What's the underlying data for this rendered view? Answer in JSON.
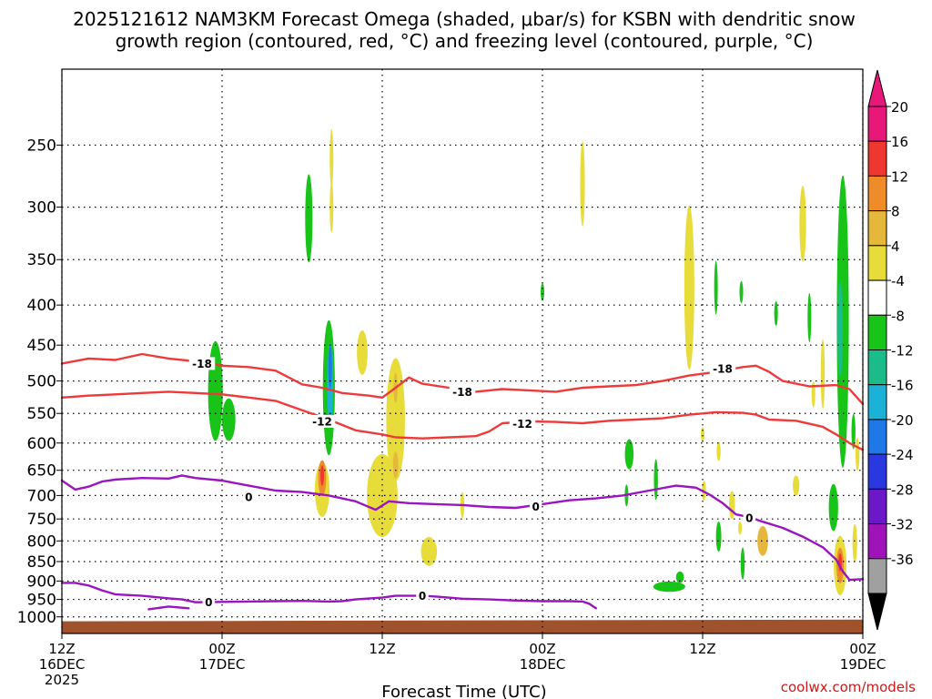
{
  "chart_data": {
    "type": "heatmap",
    "title_line1": "2025121612 NAM3KM Forecast Omega (shaded, μbar/s) for KSBN with dendritic snow",
    "title_line2": "growth region (contoured, red, °C) and freezing level (contoured, purple, °C)",
    "xlabel": "Forecast Time (UTC)",
    "credit": "coolwx.com/models",
    "x_range_hours": [
      0,
      60
    ],
    "p_range_hPa": [
      1050,
      200
    ],
    "y_ticks": [
      {
        "label": "250",
        "p": 250
      },
      {
        "label": "300",
        "p": 300
      },
      {
        "label": "350",
        "p": 350
      },
      {
        "label": "400",
        "p": 400
      },
      {
        "label": "450",
        "p": 450
      },
      {
        "label": "500",
        "p": 500
      },
      {
        "label": "550",
        "p": 550
      },
      {
        "label": "600",
        "p": 600
      },
      {
        "label": "650",
        "p": 650
      },
      {
        "label": "700",
        "p": 700
      },
      {
        "label": "750",
        "p": 750
      },
      {
        "label": "800",
        "p": 800
      },
      {
        "label": "850",
        "p": 850
      },
      {
        "label": "900",
        "p": 900
      },
      {
        "label": "950",
        "p": 950
      },
      {
        "label": "1000",
        "p": 1000
      }
    ],
    "x_ticks": [
      {
        "h": 0,
        "l1": "12Z",
        "l2": "16DEC",
        "l3": "2025"
      },
      {
        "h": 12,
        "l1": "00Z",
        "l2": "17DEC",
        "l3": ""
      },
      {
        "h": 24,
        "l1": "12Z",
        "l2": "",
        "l3": ""
      },
      {
        "h": 36,
        "l1": "00Z",
        "l2": "18DEC",
        "l3": ""
      },
      {
        "h": 48,
        "l1": "12Z",
        "l2": "",
        "l3": ""
      },
      {
        "h": 60,
        "l1": "00Z",
        "l2": "19DEC",
        "l3": ""
      }
    ],
    "colorbar": [
      {
        "label": "20",
        "color": "#e8177a"
      },
      {
        "label": "16",
        "color": "#f0372f"
      },
      {
        "label": "12",
        "color": "#ee8c2a"
      },
      {
        "label": "8",
        "color": "#e5b73a"
      },
      {
        "label": "4",
        "color": "#e8dc3a"
      },
      {
        "label": "-4",
        "color": "#ffffff"
      },
      {
        "label": "-8",
        "color": "#19c419"
      },
      {
        "label": "-12",
        "color": "#1bbc8a"
      },
      {
        "label": "-16",
        "color": "#1cb2d8"
      },
      {
        "label": "-20",
        "color": "#1e78e8"
      },
      {
        "label": "-24",
        "color": "#2a38e0"
      },
      {
        "label": "-28",
        "color": "#6a18c8"
      },
      {
        "label": "-32",
        "color": "#9e14b8"
      },
      {
        "label": "-36",
        "color": "#a0a0a0"
      }
    ],
    "colorbar_top_color": "#e8177a",
    "colorbar_bottom_color": "#000000",
    "terrain": {
      "p_top_left": 1013,
      "p_top_right": 1008,
      "color": "#a0522d"
    },
    "contours": [
      {
        "name": "dgz-top-minus18",
        "label": "-18",
        "color": "#ee3a3a",
        "label_points": [
          {
            "h": 10.5,
            "p": 475
          },
          {
            "h": 30,
            "p": 516
          },
          {
            "h": 49.5,
            "p": 482
          }
        ],
        "points": [
          [
            0,
            475
          ],
          [
            2,
            468
          ],
          [
            4,
            470
          ],
          [
            6,
            462
          ],
          [
            8,
            468
          ],
          [
            10,
            472
          ],
          [
            12,
            478
          ],
          [
            14,
            480
          ],
          [
            16,
            485
          ],
          [
            18,
            505
          ],
          [
            19.5,
            510
          ],
          [
            21,
            518
          ],
          [
            23,
            522
          ],
          [
            24,
            525
          ],
          [
            25,
            510
          ],
          [
            26,
            495
          ],
          [
            27,
            504
          ],
          [
            29,
            510
          ],
          [
            31,
            516
          ],
          [
            33,
            512
          ],
          [
            35,
            514
          ],
          [
            37,
            516
          ],
          [
            39,
            510
          ],
          [
            41,
            508
          ],
          [
            43,
            506
          ],
          [
            45,
            500
          ],
          [
            47,
            492
          ],
          [
            49,
            487
          ],
          [
            51,
            480
          ],
          [
            52,
            478
          ],
          [
            53,
            487
          ],
          [
            54,
            500
          ],
          [
            56,
            508
          ],
          [
            58,
            506
          ],
          [
            59,
            512
          ],
          [
            60,
            535
          ]
        ]
      },
      {
        "name": "dgz-bottom-minus12",
        "label": "-12",
        "color": "#ee3a3a",
        "label_points": [
          {
            "h": 19.5,
            "p": 563
          },
          {
            "h": 34.5,
            "p": 567
          }
        ],
        "points": [
          [
            0,
            525
          ],
          [
            2,
            522
          ],
          [
            4,
            520
          ],
          [
            6,
            518
          ],
          [
            8,
            516
          ],
          [
            10,
            518
          ],
          [
            12,
            520
          ],
          [
            14,
            525
          ],
          [
            16,
            530
          ],
          [
            18,
            545
          ],
          [
            20,
            560
          ],
          [
            22,
            578
          ],
          [
            24,
            585
          ],
          [
            25,
            590
          ],
          [
            27,
            592
          ],
          [
            29,
            590
          ],
          [
            31,
            588
          ],
          [
            32,
            580
          ],
          [
            33,
            566
          ],
          [
            35,
            563
          ],
          [
            37,
            564
          ],
          [
            39,
            566
          ],
          [
            41,
            562
          ],
          [
            43,
            560
          ],
          [
            45,
            558
          ],
          [
            47,
            552
          ],
          [
            49,
            548
          ],
          [
            51,
            549
          ],
          [
            52,
            552
          ],
          [
            53,
            560
          ],
          [
            55,
            562
          ],
          [
            57,
            572
          ],
          [
            58,
            585
          ],
          [
            59,
            600
          ],
          [
            60,
            612
          ]
        ]
      },
      {
        "name": "freezing-level-upper",
        "label": "0",
        "color": "#9a14c0",
        "label_points": [
          {
            "h": 14,
            "p": 703
          },
          {
            "h": 35.5,
            "p": 723
          },
          {
            "h": 51.5,
            "p": 748
          }
        ],
        "points": [
          [
            0,
            670
          ],
          [
            1,
            688
          ],
          [
            2,
            682
          ],
          [
            3,
            672
          ],
          [
            4,
            668
          ],
          [
            6,
            665
          ],
          [
            8,
            666
          ],
          [
            9,
            660
          ],
          [
            10,
            665
          ],
          [
            12,
            670
          ],
          [
            14,
            680
          ],
          [
            16,
            690
          ],
          [
            18,
            693
          ],
          [
            20,
            700
          ],
          [
            22,
            712
          ],
          [
            23.5,
            730
          ],
          [
            24.5,
            712
          ],
          [
            26,
            716
          ],
          [
            28,
            718
          ],
          [
            30,
            720
          ],
          [
            32,
            724
          ],
          [
            34,
            726
          ],
          [
            36,
            718
          ],
          [
            38,
            710
          ],
          [
            40,
            706
          ],
          [
            42,
            700
          ],
          [
            44,
            690
          ],
          [
            46,
            680
          ],
          [
            47.5,
            684
          ],
          [
            48.5,
            698
          ],
          [
            49.5,
            716
          ],
          [
            50.5,
            740
          ],
          [
            51.5,
            746
          ],
          [
            52.5,
            756
          ],
          [
            54,
            770
          ],
          [
            55.5,
            790
          ],
          [
            57,
            815
          ],
          [
            58,
            845
          ],
          [
            58.5,
            875
          ],
          [
            59,
            897
          ],
          [
            60,
            895
          ]
        ]
      },
      {
        "name": "freezing-level-lower",
        "label": "0",
        "color": "#9a14c0",
        "label_points": [
          {
            "h": 11,
            "p": 957
          },
          {
            "h": 27,
            "p": 940
          }
        ],
        "points": [
          [
            0,
            905
          ],
          [
            1,
            905
          ],
          [
            2,
            912
          ],
          [
            3,
            925
          ],
          [
            4,
            936
          ],
          [
            6,
            940
          ],
          [
            8,
            947
          ],
          [
            9,
            950
          ],
          [
            10,
            958
          ],
          [
            12,
            957
          ],
          [
            14,
            956
          ],
          [
            16,
            955
          ],
          [
            18,
            954
          ],
          [
            20,
            956
          ],
          [
            21,
            955
          ],
          [
            22,
            950
          ],
          [
            24,
            945
          ],
          [
            25,
            940
          ],
          [
            27,
            940
          ],
          [
            28,
            942
          ],
          [
            30,
            948
          ],
          [
            32,
            950
          ],
          [
            34,
            953
          ],
          [
            36,
            955
          ],
          [
            38,
            955
          ],
          [
            39,
            956
          ],
          [
            39.5,
            962
          ],
          [
            40,
            975
          ]
        ]
      },
      {
        "name": "freezing-level-fragment",
        "label": "",
        "color": "#9a14c0",
        "label_points": [],
        "points": [
          [
            6.5,
            978
          ],
          [
            8,
            970
          ],
          [
            9.5,
            975
          ]
        ]
      }
    ],
    "blobs": [
      {
        "h": 11.5,
        "p": 515,
        "w": 1.1,
        "hp": 150,
        "color": "#19c419"
      },
      {
        "h": 12.5,
        "p": 560,
        "w": 1.0,
        "hp": 70,
        "color": "#19c419"
      },
      {
        "h": 18.5,
        "p": 310,
        "w": 0.55,
        "hp": 80,
        "color": "#19c419"
      },
      {
        "h": 20.0,
        "p": 510,
        "w": 0.9,
        "hp": 200,
        "color": "#19c419"
      },
      {
        "h": 20.1,
        "p": 505,
        "w": 0.45,
        "hp": 120,
        "color": "#1cb2d8"
      },
      {
        "h": 20.1,
        "p": 480,
        "w": 0.25,
        "hp": 60,
        "color": "#1e78e8"
      },
      {
        "h": 20.2,
        "p": 260,
        "w": 0.25,
        "hp": 45,
        "color": "#e8dc3a"
      },
      {
        "h": 20.2,
        "p": 300,
        "w": 0.25,
        "hp": 45,
        "color": "#e8dc3a"
      },
      {
        "h": 22.5,
        "p": 460,
        "w": 0.8,
        "hp": 60,
        "color": "#e8dc3a"
      },
      {
        "h": 19.5,
        "p": 688,
        "w": 1.1,
        "hp": 110,
        "color": "#e8dc3a"
      },
      {
        "h": 19.5,
        "p": 665,
        "w": 0.6,
        "hp": 70,
        "color": "#ee8c2a"
      },
      {
        "h": 19.5,
        "p": 660,
        "w": 0.25,
        "hp": 40,
        "color": "#f0372f"
      },
      {
        "h": 24.0,
        "p": 700,
        "w": 2.3,
        "hp": 170,
        "color": "#e8dc3a"
      },
      {
        "h": 25.0,
        "p": 560,
        "w": 1.4,
        "hp": 200,
        "color": "#e8dc3a"
      },
      {
        "h": 25.0,
        "p": 640,
        "w": 0.4,
        "hp": 50,
        "color": "#e5b73a"
      },
      {
        "h": 25.0,
        "p": 510,
        "w": 0.3,
        "hp": 45,
        "color": "#e5b73a"
      },
      {
        "h": 27.5,
        "p": 825,
        "w": 1.2,
        "hp": 70,
        "color": "#e8dc3a"
      },
      {
        "h": 30.0,
        "p": 720,
        "w": 0.3,
        "hp": 55,
        "color": "#e8dc3a"
      },
      {
        "h": 36.0,
        "p": 385,
        "w": 0.18,
        "hp": 20,
        "color": "#19c419"
      },
      {
        "h": 39.0,
        "p": 280,
        "w": 0.35,
        "hp": 70,
        "color": "#e8dc3a"
      },
      {
        "h": 42.5,
        "p": 620,
        "w": 0.65,
        "hp": 55,
        "color": "#19c419"
      },
      {
        "h": 42.3,
        "p": 700,
        "w": 0.25,
        "hp": 45,
        "color": "#19c419"
      },
      {
        "h": 44.5,
        "p": 668,
        "w": 0.3,
        "hp": 80,
        "color": "#19c419"
      },
      {
        "h": 45.5,
        "p": 915,
        "w": 2.4,
        "hp": 28,
        "color": "#19c419"
      },
      {
        "h": 46.3,
        "p": 890,
        "w": 0.6,
        "hp": 30,
        "color": "#19c419"
      },
      {
        "h": 47.0,
        "p": 380,
        "w": 0.75,
        "hp": 180,
        "color": "#e8dc3a"
      },
      {
        "h": 49.2,
        "p": 615,
        "w": 0.3,
        "hp": 35,
        "color": "#e8dc3a"
      },
      {
        "h": 48.0,
        "p": 585,
        "w": 0.28,
        "hp": 25,
        "color": "#e8dc3a"
      },
      {
        "h": 48.1,
        "p": 690,
        "w": 0.3,
        "hp": 40,
        "color": "#e8dc3a"
      },
      {
        "h": 49.0,
        "p": 380,
        "w": 0.15,
        "hp": 60,
        "color": "#19c419"
      },
      {
        "h": 50.2,
        "p": 720,
        "w": 0.45,
        "hp": 60,
        "color": "#e8dc3a"
      },
      {
        "h": 49.2,
        "p": 790,
        "w": 0.4,
        "hp": 70,
        "color": "#19c419"
      },
      {
        "h": 50.9,
        "p": 385,
        "w": 0.15,
        "hp": 25,
        "color": "#19c419"
      },
      {
        "h": 50.8,
        "p": 770,
        "w": 0.2,
        "hp": 30,
        "color": "#e8dc3a"
      },
      {
        "h": 51.0,
        "p": 855,
        "w": 0.3,
        "hp": 80,
        "color": "#19c419"
      },
      {
        "h": 53.5,
        "p": 410,
        "w": 0.18,
        "hp": 30,
        "color": "#19c419"
      },
      {
        "h": 52.5,
        "p": 800,
        "w": 0.8,
        "hp": 70,
        "color": "#e5b73a"
      },
      {
        "h": 55.0,
        "p": 680,
        "w": 0.5,
        "hp": 40,
        "color": "#e8dc3a"
      },
      {
        "h": 55.5,
        "p": 315,
        "w": 0.5,
        "hp": 70,
        "color": "#e8dc3a"
      },
      {
        "h": 56.0,
        "p": 415,
        "w": 0.25,
        "hp": 60,
        "color": "#19c419"
      },
      {
        "h": 56.3,
        "p": 520,
        "w": 0.25,
        "hp": 40,
        "color": "#e8dc3a"
      },
      {
        "h": 57.0,
        "p": 490,
        "w": 0.3,
        "hp": 100,
        "color": "#e8dc3a"
      },
      {
        "h": 58.5,
        "p": 420,
        "w": 0.9,
        "hp": 340,
        "color": "#19c419"
      },
      {
        "h": 58.3,
        "p": 430,
        "w": 0.4,
        "hp": 120,
        "color": "#1bbc8a"
      },
      {
        "h": 57.8,
        "p": 725,
        "w": 0.7,
        "hp": 100,
        "color": "#19c419"
      },
      {
        "h": 58.3,
        "p": 860,
        "w": 0.95,
        "hp": 150,
        "color": "#e8dc3a"
      },
      {
        "h": 58.3,
        "p": 860,
        "w": 0.55,
        "hp": 90,
        "color": "#ee8c2a"
      },
      {
        "h": 58.3,
        "p": 852,
        "w": 0.25,
        "hp": 45,
        "color": "#f0372f"
      },
      {
        "h": 59.3,
        "p": 580,
        "w": 0.3,
        "hp": 60,
        "color": "#19c419"
      },
      {
        "h": 59.4,
        "p": 805,
        "w": 0.35,
        "hp": 90,
        "color": "#e8dc3a"
      },
      {
        "h": 59.6,
        "p": 620,
        "w": 0.3,
        "hp": 60,
        "color": "#e8dc3a"
      }
    ]
  }
}
